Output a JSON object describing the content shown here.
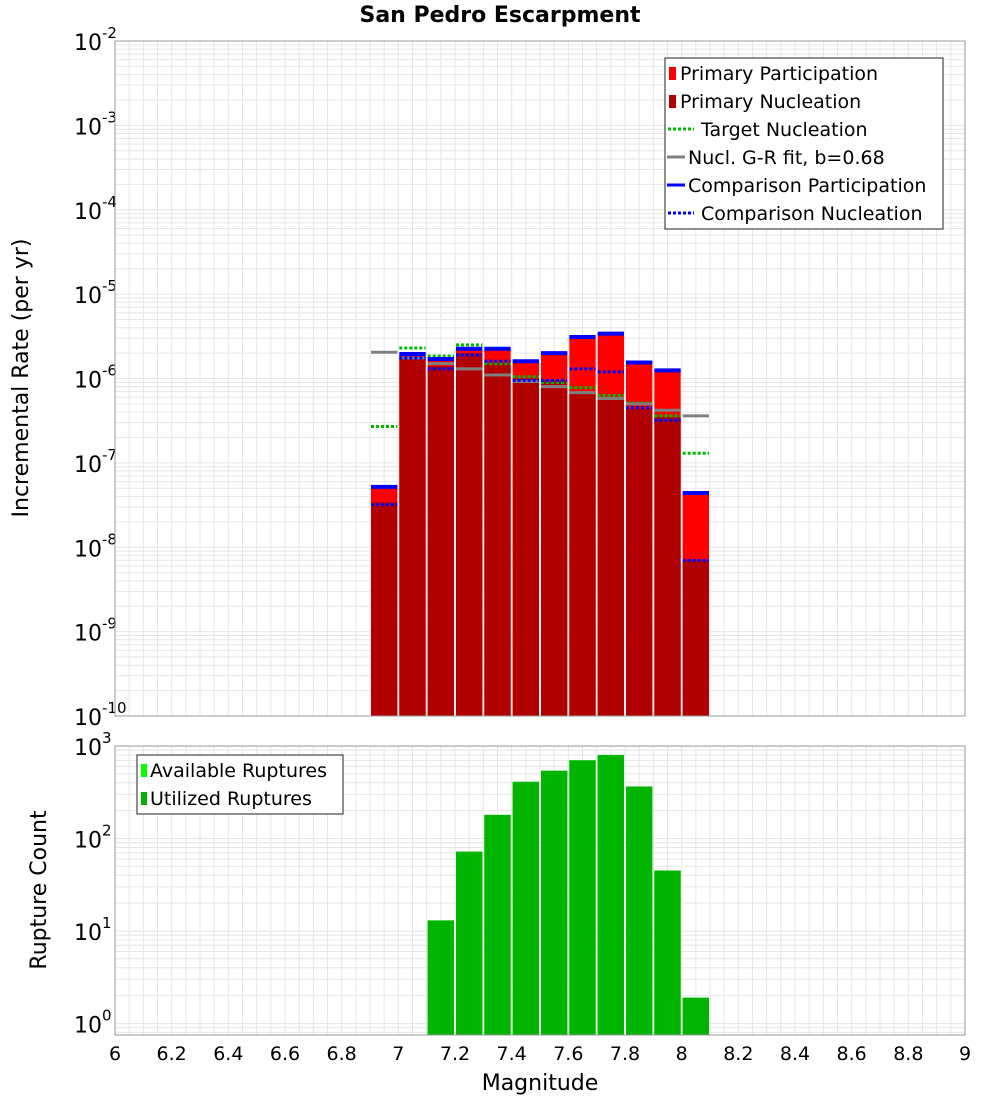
{
  "title": "San Pedro Escarpment",
  "xlabel": "Magnitude",
  "x_ticks": [
    "6",
    "6.2",
    "6.4",
    "6.6",
    "6.8",
    "7",
    "7.2",
    "7.4",
    "7.6",
    "7.8",
    "8",
    "8.2",
    "8.4",
    "8.6",
    "8.8",
    "9"
  ],
  "colors": {
    "primary_participation": "#ff0000",
    "primary_nucleation": "#b00000",
    "target_nucleation": "#00bb00",
    "gr_fit": "#808080",
    "comparison": "#0000ff",
    "available": "#00ff00",
    "utilized": "#00b400",
    "grid": "#e6e6e6"
  },
  "chart_data": [
    {
      "type": "bar",
      "ylabel": "Incremental Rate (per yr)",
      "y_scale": "log",
      "xlim": [
        6,
        9
      ],
      "ylim": [
        1e-10,
        0.01
      ],
      "y_ticks": [
        {
          "base": "10",
          "exp": "-2",
          "value": 0.01
        },
        {
          "base": "10",
          "exp": "-3",
          "value": 0.001
        },
        {
          "base": "10",
          "exp": "-4",
          "value": 0.0001
        },
        {
          "base": "10",
          "exp": "-5",
          "value": 1e-05
        },
        {
          "base": "10",
          "exp": "-6",
          "value": 1e-06
        },
        {
          "base": "10",
          "exp": "-7",
          "value": 1e-07
        },
        {
          "base": "10",
          "exp": "-8",
          "value": 1e-08
        },
        {
          "base": "10",
          "exp": "-9",
          "value": 1e-09
        },
        {
          "base": "10",
          "exp": "-10",
          "value": 1e-10
        }
      ],
      "legend_position": "top-right",
      "legend": [
        "Primary Participation",
        "Primary Nucleation",
        "Target Nucleation",
        "Nucl. G-R fit, b=0.68",
        "Comparison Participation",
        "Comparison Nucleation"
      ],
      "x": [
        6.95,
        7.05,
        7.15,
        7.25,
        7.35,
        7.45,
        7.55,
        7.65,
        7.75,
        7.85,
        7.95,
        8.05
      ],
      "series": [
        {
          "name": "Primary Participation",
          "style": "bar",
          "values": [
            5.2e-08,
            1.95e-06,
            1.7e-06,
            2.25e-06,
            2.25e-06,
            1.6e-06,
            2e-06,
            3.1e-06,
            3.4e-06,
            1.55e-06,
            1.25e-06,
            4.4e-08
          ]
        },
        {
          "name": "Primary Nucleation",
          "style": "bar",
          "values": [
            3.4e-08,
            1.8e-06,
            1.4e-06,
            2e-06,
            1.5e-06,
            1e-06,
            9.5e-07,
            7e-07,
            6e-07,
            4.4e-07,
            3.5e-07,
            7e-09
          ]
        },
        {
          "name": "Target Nucleation",
          "style": "dotted",
          "values": [
            2.7e-07,
            2.3e-06,
            1.85e-06,
            2.5e-06,
            1.5e-06,
            1.05e-06,
            9e-07,
            7.8e-07,
            6.3e-07,
            5.1e-07,
            3.6e-07,
            1.3e-07
          ]
        },
        {
          "name": "Nucl. G-R fit, b=0.68",
          "style": "line",
          "values": [
            2.05e-06,
            1.75e-06,
            1.5e-06,
            1.3e-06,
            1.1e-06,
            9.2e-07,
            8e-07,
            6.8e-07,
            5.8e-07,
            5e-07,
            4.2e-07,
            3.6e-07
          ]
        },
        {
          "name": "Comparison Participation",
          "style": "line",
          "values": [
            5.2e-08,
            1.95e-06,
            1.7e-06,
            2.25e-06,
            2.25e-06,
            1.6e-06,
            2e-06,
            3.1e-06,
            3.4e-06,
            1.55e-06,
            1.25e-06,
            4.4e-08
          ]
        },
        {
          "name": "Comparison Nucleation",
          "style": "dotted",
          "values": [
            3.2e-08,
            1.75e-06,
            1.3e-06,
            1.9e-06,
            1.6e-06,
            9.5e-07,
            9.5e-07,
            1.3e-06,
            1.2e-06,
            4.5e-07,
            3.2e-07,
            7e-09
          ]
        }
      ]
    },
    {
      "type": "bar",
      "ylabel": "Rupture Count",
      "y_scale": "log",
      "xlim": [
        6,
        9
      ],
      "ylim": [
        0.75,
        1000
      ],
      "y_ticks": [
        {
          "base": "10",
          "exp": "3",
          "value": 1000
        },
        {
          "base": "10",
          "exp": "2",
          "value": 100
        },
        {
          "base": "10",
          "exp": "1",
          "value": 10
        },
        {
          "base": "10",
          "exp": "0",
          "value": 1
        }
      ],
      "legend_position": "top-left",
      "legend": [
        "Available Ruptures",
        "Utilized Ruptures"
      ],
      "x": [
        7.15,
        7.25,
        7.35,
        7.45,
        7.55,
        7.65,
        7.75,
        7.85,
        7.95,
        8.05
      ],
      "series": [
        {
          "name": "Available Ruptures",
          "style": "bar",
          "values": [
            13,
            72,
            180,
            410,
            540,
            700,
            800,
            365,
            45,
            1.9
          ]
        },
        {
          "name": "Utilized Ruptures",
          "style": "bar",
          "values": [
            13,
            72,
            180,
            410,
            540,
            700,
            800,
            365,
            45,
            1.9
          ]
        }
      ]
    }
  ]
}
